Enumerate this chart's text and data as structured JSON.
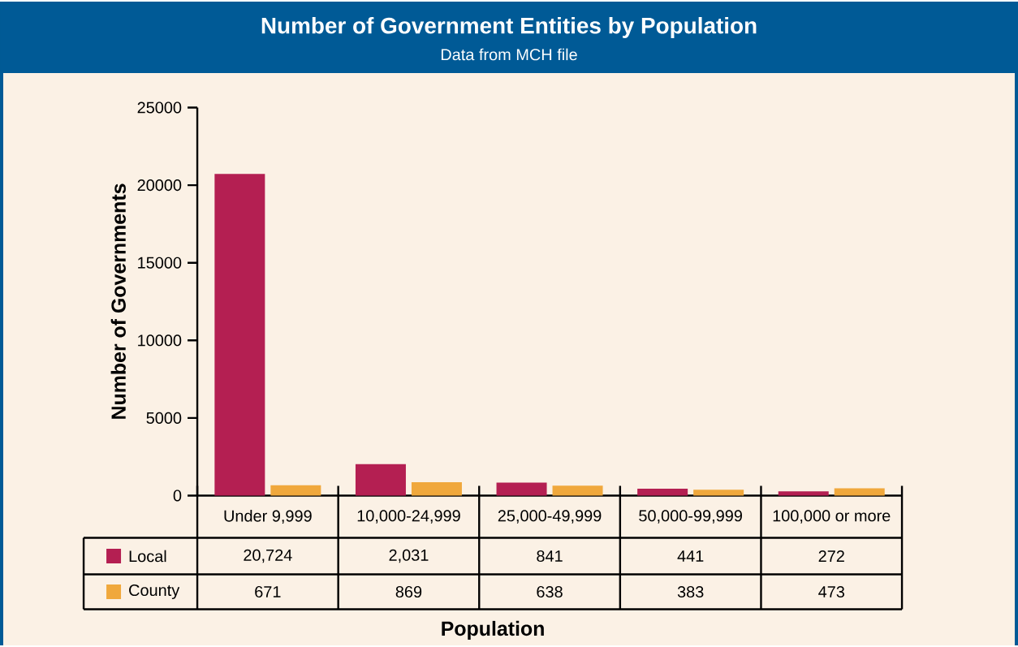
{
  "chart_data": {
    "type": "bar",
    "title": "Number of Government Entities by Population",
    "subtitle": "Data from MCH file",
    "xlabel": "Population",
    "ylabel": "Number of Governments",
    "categories": [
      "Under 9,999",
      "10,000-24,999",
      "25,000-49,999",
      "50,000-99,999",
      "100,000 or more"
    ],
    "series": [
      {
        "name": "Local",
        "color": "#b41f52",
        "values": [
          20724,
          2031,
          841,
          441,
          272
        ],
        "value_labels": [
          "20,724",
          "2,031",
          "841",
          "441",
          "272"
        ]
      },
      {
        "name": "County",
        "color": "#f0a83c",
        "values": [
          671,
          869,
          638,
          383,
          473
        ],
        "value_labels": [
          "671",
          "869",
          "638",
          "383",
          "473"
        ]
      }
    ],
    "ylim": [
      0,
      25000
    ],
    "yticks": [
      0,
      5000,
      10000,
      15000,
      20000,
      25000
    ],
    "legend": "bottom"
  }
}
